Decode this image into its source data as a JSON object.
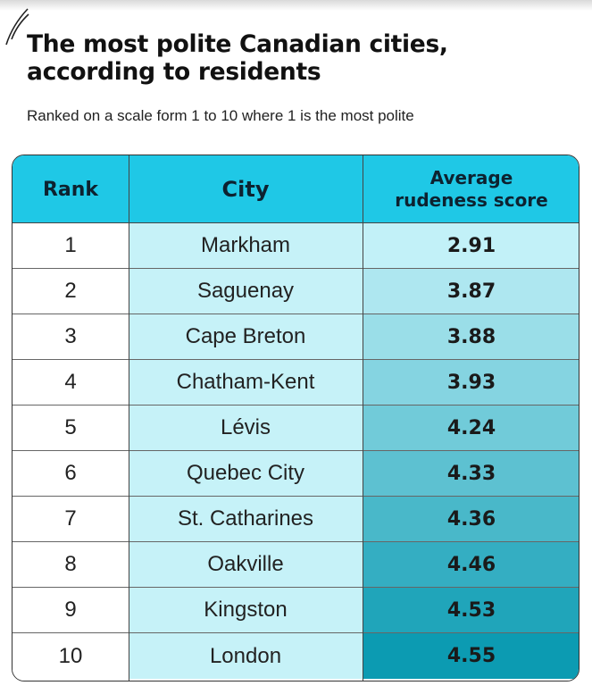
{
  "title_line1": "The most polite Canadian cities,",
  "title_line2": "according to residents",
  "subtitle": "Ranked on a scale form 1 to 10 where 1 is the most polite",
  "headers": {
    "rank": "Rank",
    "city": "City",
    "score_line1": "Average",
    "score_line2": "rudeness score"
  },
  "colors": {
    "header": "#1fc8e6",
    "city_column": "#c6f2f8",
    "score_light": "#c2f1f8",
    "score_dark": "#0c9bb2"
  },
  "chart_data": {
    "type": "table",
    "title": "The most polite Canadian cities, according to residents",
    "subtitle": "Ranked on a scale form 1 to 10 where 1 is the most polite",
    "columns": [
      "Rank",
      "City",
      "Average rudeness score"
    ],
    "rows": [
      {
        "rank": "1",
        "city": "Markham",
        "score": "2.91"
      },
      {
        "rank": "2",
        "city": "Saguenay",
        "score": "3.87"
      },
      {
        "rank": "3",
        "city": "Cape Breton",
        "score": "3.88"
      },
      {
        "rank": "4",
        "city": "Chatham-Kent",
        "score": "3.93"
      },
      {
        "rank": "5",
        "city": "Lévis",
        "score": "4.24"
      },
      {
        "rank": "6",
        "city": "Quebec City",
        "score": "4.33"
      },
      {
        "rank": "7",
        "city": "St. Catharines",
        "score": "4.36"
      },
      {
        "rank": "8",
        "city": "Oakville",
        "score": "4.46"
      },
      {
        "rank": "9",
        "city": "Kingston",
        "score": "4.53"
      },
      {
        "rank": "10",
        "city": "London",
        "score": "4.55"
      }
    ]
  }
}
